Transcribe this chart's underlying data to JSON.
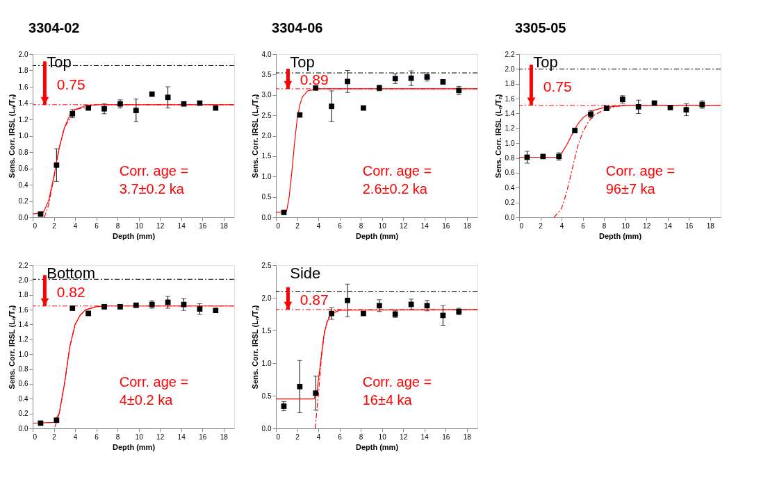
{
  "chart_data": [
    {
      "type": "scatter",
      "title": "3304-02",
      "subtitle": "Top",
      "xlabel": "Depth (mm)",
      "ylabel": "Sens. Corr. IRSL (Lₙ/Tₙ)",
      "x": [
        0.75,
        2.25,
        3.75,
        5.25,
        6.75,
        8.25,
        9.75,
        11.25,
        12.75,
        14.25,
        15.75,
        17.25
      ],
      "xlim": [
        0,
        19
      ],
      "xticks": [
        0,
        2,
        4,
        6,
        8,
        10,
        12,
        14,
        16,
        18
      ],
      "ylim": [
        0,
        2.0
      ],
      "yticks": [
        {
          "value": 0,
          "label": "0.0"
        },
        0.2,
        0.4,
        0.6,
        0.8,
        {
          "value": 1,
          "label": "1.0"
        },
        1.2,
        1.4,
        1.6,
        1.8,
        {
          "value": 2,
          "label": "2.0"
        }
      ],
      "series": [
        {
          "color": "#000000",
          "marker": "square",
          "values": [
            0.04,
            0.64,
            1.27,
            1.34,
            1.33,
            1.39,
            1.31,
            1.51,
            1.47,
            1.39,
            1.4,
            1.34
          ],
          "errors": [
            null,
            0.2,
            0.05,
            null,
            0.06,
            0.05,
            0.14,
            null,
            0.13,
            null,
            null,
            null
          ]
        },
        {
          "type": "line",
          "color": "#ff0000",
          "line_style": "solid",
          "x": [
            0,
            1.0,
            1.5,
            2.0,
            2.5,
            3.0,
            3.5,
            4.0,
            5.0,
            6.0,
            19
          ],
          "values": [
            0.04,
            0.06,
            0.2,
            0.5,
            0.85,
            1.1,
            1.25,
            1.32,
            1.37,
            1.38,
            1.38
          ]
        },
        {
          "type": "line",
          "color": "#ff0000",
          "line_style": "dashed",
          "x": [
            1.1,
            1.5,
            2.0,
            2.5,
            3.0,
            4.0,
            6.0
          ],
          "values": [
            0.0,
            0.15,
            0.48,
            0.85,
            1.1,
            1.32,
            1.38
          ]
        }
      ],
      "ref_lines": [
        {
          "axis": "y",
          "value": 1.86,
          "color": "#000000",
          "line_style": "dashed"
        },
        {
          "axis": "y",
          "value": 1.38,
          "color": "#ff0000",
          "line_style": "dashed"
        }
      ],
      "annotations": [
        "0.75",
        "Corr. age =",
        "3.7±0.2 ka"
      ]
    },
    {
      "type": "scatter",
      "title": "3304-06",
      "subtitle": "Top",
      "xlabel": "Depth (mm)",
      "ylabel": "Sens. Corr. IRSL (Lₙ/Tₙ)",
      "x": [
        0.75,
        2.25,
        3.75,
        5.25,
        6.75,
        8.25,
        9.75,
        11.25,
        12.75,
        14.25,
        15.75,
        17.25
      ],
      "xlim": [
        0,
        19
      ],
      "xticks": [
        0,
        2,
        4,
        6,
        8,
        10,
        12,
        14,
        16,
        18
      ],
      "ylim": [
        0,
        4.0
      ],
      "yticks": [
        {
          "value": 0,
          "label": "0.0"
        },
        0.5,
        {
          "value": 1,
          "label": "1.0"
        },
        1.5,
        {
          "value": 2,
          "label": "2.0"
        },
        2.5,
        {
          "value": 3,
          "label": "3.0"
        },
        3.5,
        {
          "value": 4,
          "label": "4.0"
        }
      ],
      "series": [
        {
          "color": "#000000",
          "marker": "square",
          "values": [
            0.12,
            2.51,
            3.17,
            2.72,
            3.33,
            2.68,
            3.17,
            3.4,
            3.41,
            3.44,
            3.32,
            3.11
          ],
          "errors": [
            null,
            null,
            null,
            0.38,
            0.27,
            null,
            0.07,
            0.12,
            0.18,
            0.1,
            0.05,
            0.1
          ]
        },
        {
          "type": "line",
          "color": "#ff0000",
          "line_style": "solid",
          "x": [
            0,
            1.0,
            1.25,
            1.5,
            1.75,
            2.0,
            2.25,
            2.5,
            3.0,
            4.0,
            19
          ],
          "values": [
            0.12,
            0.14,
            0.5,
            1.1,
            1.8,
            2.4,
            2.75,
            2.95,
            3.1,
            3.15,
            3.15
          ]
        }
      ],
      "ref_lines": [
        {
          "axis": "y",
          "value": 3.54,
          "color": "#000000",
          "line_style": "dashed"
        },
        {
          "axis": "y",
          "value": 3.15,
          "color": "#ff0000",
          "line_style": "dashed"
        }
      ],
      "annotations": [
        "0.89",
        "Corr. age =",
        "2.6±0.2 ka"
      ]
    },
    {
      "type": "scatter",
      "title": "3305-05",
      "subtitle": "Top",
      "xlabel": "Depth (mm)",
      "ylabel": "Sens. Corr. IRSL (Lₙ/Tₙ)",
      "x": [
        0.75,
        2.25,
        3.75,
        5.25,
        6.75,
        8.25,
        9.75,
        11.25,
        12.75,
        14.25,
        15.75,
        17.25
      ],
      "xlim": [
        0,
        19
      ],
      "xticks": [
        0,
        2,
        4,
        6,
        8,
        10,
        12,
        14,
        16,
        18
      ],
      "ylim": [
        0,
        2.2
      ],
      "yticks": [
        {
          "value": 0,
          "label": "0.0"
        },
        0.2,
        0.4,
        0.6,
        0.8,
        {
          "value": 1,
          "label": "1.0"
        },
        1.2,
        1.4,
        1.6,
        1.8,
        {
          "value": 2,
          "label": "2.0"
        },
        2.2
      ],
      "series": [
        {
          "color": "#000000",
          "marker": "square",
          "values": [
            0.81,
            0.82,
            0.82,
            1.17,
            1.39,
            1.47,
            1.59,
            1.49,
            1.54,
            1.48,
            1.45,
            1.52
          ],
          "errors": [
            0.08,
            null,
            0.05,
            null,
            0.05,
            0.03,
            0.05,
            0.09,
            null,
            null,
            0.08,
            0.05
          ]
        },
        {
          "type": "line",
          "color": "#ff0000",
          "line_style": "solid",
          "x": [
            0,
            3.5,
            4.0,
            4.5,
            5.0,
            5.5,
            6.0,
            7.0,
            8.0,
            10.0,
            19
          ],
          "values": [
            0.81,
            0.81,
            0.86,
            0.98,
            1.12,
            1.25,
            1.34,
            1.44,
            1.48,
            1.51,
            1.51
          ]
        },
        {
          "type": "line",
          "color": "#ff0000",
          "line_style": "dashed",
          "x": [
            3.3,
            4.0,
            4.5,
            5.0,
            5.5,
            6.0,
            6.5,
            7.0,
            8.0,
            9.0,
            10.0
          ],
          "values": [
            0.0,
            0.12,
            0.35,
            0.65,
            0.95,
            1.15,
            1.28,
            1.37,
            1.45,
            1.49,
            1.51
          ]
        }
      ],
      "ref_lines": [
        {
          "axis": "y",
          "value": 2.0,
          "color": "#000000",
          "line_style": "dashed"
        },
        {
          "axis": "y",
          "value": 1.51,
          "color": "#ff0000",
          "line_style": "dashed"
        }
      ],
      "annotations": [
        "0.75",
        "Corr. age =",
        "96±7 ka"
      ]
    },
    {
      "type": "scatter",
      "subtitle": "Bottom",
      "xlabel": "Depth (mm)",
      "ylabel": "Sens. Corr. IRSL (Lₙ/Tₙ)",
      "x": [
        0.75,
        2.25,
        3.75,
        5.25,
        6.75,
        8.25,
        9.75,
        11.25,
        12.75,
        14.25,
        15.75,
        17.25
      ],
      "xlim": [
        0,
        19
      ],
      "xticks": [
        0,
        2,
        4,
        6,
        8,
        10,
        12,
        14,
        16,
        18
      ],
      "ylim": [
        0,
        2.2
      ],
      "yticks": [
        {
          "value": 0,
          "label": "0.0"
        },
        0.2,
        0.4,
        0.6,
        0.8,
        {
          "value": 1,
          "label": "1.0"
        },
        1.2,
        1.4,
        1.6,
        1.8,
        {
          "value": 2,
          "label": "2.0"
        },
        2.2
      ],
      "series": [
        {
          "color": "#000000",
          "marker": "square",
          "values": [
            0.07,
            0.11,
            1.62,
            1.55,
            1.64,
            1.64,
            1.66,
            1.67,
            1.7,
            1.67,
            1.61,
            1.59
          ],
          "errors": [
            null,
            null,
            null,
            0.03,
            0.03,
            0.03,
            0.02,
            0.05,
            0.08,
            0.08,
            0.07,
            null
          ]
        },
        {
          "type": "line",
          "color": "#ff0000",
          "line_style": "solid",
          "x": [
            0,
            2.0,
            2.5,
            3.0,
            3.5,
            4.0,
            4.5,
            5.0,
            6.0,
            7.0,
            19
          ],
          "values": [
            0.07,
            0.08,
            0.2,
            0.6,
            1.1,
            1.4,
            1.53,
            1.6,
            1.64,
            1.65,
            1.65
          ]
        },
        {
          "type": "line",
          "color": "#ff0000",
          "line_style": "dashed",
          "x": [
            2.1,
            2.5,
            3.0,
            3.5,
            4.0,
            4.5,
            5.0,
            6.0,
            7.0
          ],
          "values": [
            0.02,
            0.2,
            0.6,
            1.1,
            1.4,
            1.53,
            1.6,
            1.64,
            1.65
          ]
        }
      ],
      "ref_lines": [
        {
          "axis": "y",
          "value": 2.01,
          "color": "#000000",
          "line_style": "dashed"
        },
        {
          "axis": "y",
          "value": 1.65,
          "color": "#ff0000",
          "line_style": "dashed"
        }
      ],
      "annotations": [
        "0.82",
        "Corr. age =",
        "4±0.2 ka"
      ]
    },
    {
      "type": "scatter",
      "subtitle": "Side",
      "xlabel": "Depth (mm)",
      "ylabel": "Sens. Corr. IRSL (Lₙ/Tₙ)",
      "x": [
        0.75,
        2.25,
        3.75,
        5.25,
        6.75,
        8.25,
        9.75,
        11.25,
        12.75,
        14.25,
        15.75,
        17.25
      ],
      "xlim": [
        0,
        19
      ],
      "xticks": [
        0,
        2,
        4,
        6,
        8,
        10,
        12,
        14,
        16,
        18
      ],
      "ylim": [
        0,
        2.5
      ],
      "yticks": [
        {
          "value": 0,
          "label": "0.0"
        },
        0.5,
        {
          "value": 1,
          "label": "1.0"
        },
        1.5,
        {
          "value": 2,
          "label": "2.0"
        },
        2.5
      ],
      "series": [
        {
          "color": "#000000",
          "marker": "square",
          "values": [
            0.34,
            0.64,
            0.54,
            1.76,
            1.96,
            1.76,
            1.88,
            1.75,
            1.9,
            1.88,
            1.73,
            1.79
          ],
          "errors": [
            0.07,
            0.4,
            0.26,
            0.09,
            0.25,
            null,
            0.09,
            0.05,
            0.08,
            0.08,
            0.15,
            0.05
          ]
        },
        {
          "type": "line",
          "color": "#ff0000",
          "line_style": "solid",
          "x": [
            0,
            3.6,
            3.9,
            4.2,
            4.5,
            4.8,
            5.2,
            6.0,
            19
          ],
          "values": [
            0.45,
            0.45,
            0.6,
            1.0,
            1.4,
            1.62,
            1.75,
            1.81,
            1.82
          ]
        },
        {
          "type": "line",
          "color": "#ff0000",
          "line_style": "dashed",
          "x": [
            3.7,
            4.0,
            4.3,
            4.6,
            5.0,
            5.5,
            6.0
          ],
          "values": [
            0.0,
            0.5,
            1.1,
            1.5,
            1.72,
            1.8,
            1.82
          ]
        }
      ],
      "ref_lines": [
        {
          "axis": "y",
          "value": 2.1,
          "color": "#000000",
          "line_style": "dashed"
        },
        {
          "axis": "y",
          "value": 1.82,
          "color": "#ff0000",
          "line_style": "dashed"
        }
      ],
      "annotations": [
        "0.87",
        "Corr. age =",
        "16±4 ka"
      ]
    }
  ]
}
